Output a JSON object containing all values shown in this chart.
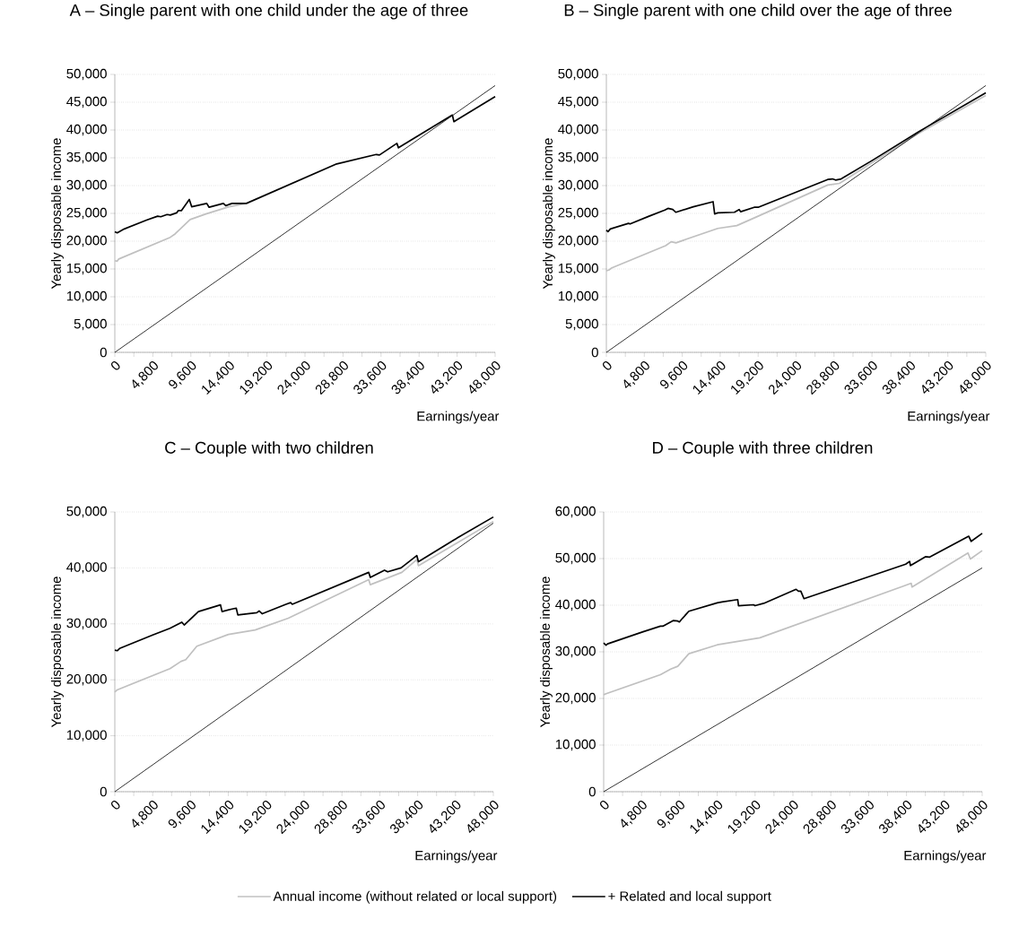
{
  "chart_data": [
    {
      "type": "line",
      "title": "A – Single parent with one child under the age of three",
      "xlabel": "Earnings/year",
      "ylabel": "Yearly disposable income",
      "grid": "y",
      "xlim": [
        0,
        48000
      ],
      "ylim": [
        0,
        50000
      ],
      "xticks": [
        0,
        {
          "value": 2400,
          "label": null
        },
        {
          "value": 4800,
          "label": "4,800"
        },
        {
          "value": 7200,
          "label": null
        },
        {
          "value": 9600,
          "label": "9,600"
        },
        {
          "value": 12000,
          "label": null
        },
        {
          "value": 14400,
          "label": "14,400"
        },
        {
          "value": 16800,
          "label": null
        },
        {
          "value": 19200,
          "label": "19,200"
        },
        {
          "value": 21600,
          "label": null
        },
        {
          "value": 24000,
          "label": "24,000"
        },
        {
          "value": 26400,
          "label": null
        },
        {
          "value": 28800,
          "label": "28,800"
        },
        {
          "value": 31200,
          "label": null
        },
        {
          "value": 33600,
          "label": "33,600"
        },
        {
          "value": 36000,
          "label": null
        },
        {
          "value": 38400,
          "label": "38,400"
        },
        {
          "value": 40800,
          "label": null
        },
        {
          "value": 43200,
          "label": "43,200"
        },
        {
          "value": 45600,
          "label": null
        },
        {
          "value": 48000,
          "label": "48,000"
        }
      ],
      "yticks": [
        0,
        {
          "value": 5000,
          "label": "5,000"
        },
        {
          "value": 10000,
          "label": "10,000"
        },
        {
          "value": 15000,
          "label": "15,000"
        },
        {
          "value": 20000,
          "label": "20,000"
        },
        {
          "value": 25000,
          "label": "25,000"
        },
        {
          "value": 30000,
          "label": "30,000"
        },
        {
          "value": 35000,
          "label": "35,000"
        },
        {
          "value": 40000,
          "label": "40,000"
        },
        {
          "value": 45000,
          "label": "45,000"
        },
        {
          "value": 50000,
          "label": "50,000"
        }
      ],
      "series": [
        {
          "color": "#c0c0c0",
          "x": [
            0,
            300,
            500,
            7000,
            7600,
            9500,
            11500,
            14400,
            16600
          ],
          "values": [
            16500,
            16400,
            16800,
            20700,
            21300,
            23900,
            24900,
            26200,
            26800
          ]
        },
        {
          "color": "#000000",
          "x": [
            0,
            300,
            1200,
            4000,
            5400,
            5800,
            6600,
            7000,
            7800,
            8000,
            8400,
            9400,
            9700,
            11600,
            11900,
            13700,
            14000,
            14800,
            16600,
            28000,
            33000,
            33400,
            35600,
            35800,
            42600,
            42800,
            48000
          ],
          "values": [
            21700,
            21500,
            22200,
            23800,
            24500,
            24400,
            24800,
            24700,
            25100,
            25500,
            25500,
            27500,
            26200,
            26800,
            26100,
            26800,
            26400,
            26800,
            26800,
            33900,
            35600,
            35500,
            37600,
            36800,
            42700,
            41500,
            46000
          ]
        },
        {
          "color": "#000000",
          "x": [
            0,
            48000
          ],
          "values": [
            0,
            48000
          ]
        }
      ]
    },
    {
      "type": "line",
      "title": "B – Single parent with one child over the age of three",
      "xlabel": "Earnings/year",
      "ylabel": "Yearly disposable income",
      "grid": "y",
      "xlim": [
        0,
        48000
      ],
      "ylim": [
        0,
        50000
      ],
      "xticks": [
        0,
        {
          "value": 2400,
          "label": null
        },
        {
          "value": 4800,
          "label": "4,800"
        },
        {
          "value": 7200,
          "label": null
        },
        {
          "value": 9600,
          "label": "9,600"
        },
        {
          "value": 12000,
          "label": null
        },
        {
          "value": 14400,
          "label": "14,400"
        },
        {
          "value": 16800,
          "label": null
        },
        {
          "value": 19200,
          "label": "19,200"
        },
        {
          "value": 21600,
          "label": null
        },
        {
          "value": 24000,
          "label": "24,000"
        },
        {
          "value": 26400,
          "label": null
        },
        {
          "value": 28800,
          "label": "28,800"
        },
        {
          "value": 31200,
          "label": null
        },
        {
          "value": 33600,
          "label": "33,600"
        },
        {
          "value": 36000,
          "label": null
        },
        {
          "value": 38400,
          "label": "38,400"
        },
        {
          "value": 40800,
          "label": null
        },
        {
          "value": 43200,
          "label": "43,200"
        },
        {
          "value": 45600,
          "label": null
        },
        {
          "value": 48000,
          "label": "48,000"
        }
      ],
      "yticks": [
        0,
        {
          "value": 5000,
          "label": "5,000"
        },
        {
          "value": 10000,
          "label": "10,000"
        },
        {
          "value": 15000,
          "label": "15,000"
        },
        {
          "value": 20000,
          "label": "20,000"
        },
        {
          "value": 25000,
          "label": "25,000"
        },
        {
          "value": 30000,
          "label": "30,000"
        },
        {
          "value": 35000,
          "label": "35,000"
        },
        {
          "value": 40000,
          "label": "40,000"
        },
        {
          "value": 45000,
          "label": "45,000"
        },
        {
          "value": 50000,
          "label": "50,000"
        }
      ],
      "series": [
        {
          "color": "#c0c0c0",
          "x": [
            0,
            300,
            700,
            7500,
            8200,
            8800,
            14100,
            16500,
            19200,
            28000,
            29500,
            33600,
            39500,
            48000
          ],
          "values": [
            14700,
            14800,
            15200,
            19200,
            19900,
            19700,
            22300,
            22800,
            24500,
            30100,
            30400,
            34100,
            39400,
            46200
          ]
        },
        {
          "color": "#000000",
          "x": [
            0,
            200,
            500,
            2800,
            3000,
            5400,
            7400,
            7800,
            8400,
            8800,
            11000,
            13500,
            13700,
            14100,
            16200,
            16800,
            17000,
            18700,
            19200,
            28000,
            28600,
            29000,
            29700,
            33600,
            39500,
            48000
          ],
          "values": [
            22000,
            21700,
            22200,
            23200,
            23100,
            24500,
            25600,
            25900,
            25700,
            25200,
            26200,
            27100,
            24900,
            25100,
            25200,
            25700,
            25300,
            26100,
            26100,
            31100,
            31200,
            31000,
            31200,
            34500,
            39700,
            46700
          ]
        },
        {
          "color": "#000000",
          "x": [
            0,
            48000
          ],
          "values": [
            0,
            48000
          ]
        }
      ]
    },
    {
      "type": "line",
      "title": "C – Couple with two children",
      "xlabel": "Earnings/year",
      "ylabel": "Yearly disposable income",
      "grid": "y",
      "xlim": [
        0,
        48000
      ],
      "ylim": [
        0,
        50000
      ],
      "xticks": [
        0,
        {
          "value": 2400,
          "label": null
        },
        {
          "value": 4800,
          "label": "4,800"
        },
        {
          "value": 7200,
          "label": null
        },
        {
          "value": 9600,
          "label": "9,600"
        },
        {
          "value": 12000,
          "label": null
        },
        {
          "value": 14400,
          "label": "14,400"
        },
        {
          "value": 16800,
          "label": null
        },
        {
          "value": 19200,
          "label": "19,200"
        },
        {
          "value": 21600,
          "label": null
        },
        {
          "value": 24000,
          "label": "24,000"
        },
        {
          "value": 26400,
          "label": null
        },
        {
          "value": 28800,
          "label": "28,800"
        },
        {
          "value": 31200,
          "label": null
        },
        {
          "value": 33600,
          "label": "33,600"
        },
        {
          "value": 36000,
          "label": null
        },
        {
          "value": 38400,
          "label": "38,400"
        },
        {
          "value": 40800,
          "label": null
        },
        {
          "value": 43200,
          "label": "43,200"
        },
        {
          "value": 45600,
          "label": null
        },
        {
          "value": 48000,
          "label": "48,000"
        }
      ],
      "yticks": [
        0,
        {
          "value": 10000,
          "label": "10,000"
        },
        {
          "value": 20000,
          "label": "20,000"
        },
        {
          "value": 30000,
          "label": "30,000"
        },
        {
          "value": 40000,
          "label": "40,000"
        },
        {
          "value": 50000,
          "label": "50,000"
        }
      ],
      "series": [
        {
          "color": "#c0c0c0",
          "x": [
            0,
            300,
            7000,
            8400,
            9000,
            10400,
            14400,
            17800,
            22000,
            32200,
            32400,
            36400,
            38300,
            38500,
            48000
          ],
          "values": [
            17800,
            18200,
            22000,
            23300,
            23600,
            26000,
            28100,
            28900,
            31000,
            37900,
            37000,
            39200,
            41500,
            40400,
            48300
          ]
        },
        {
          "color": "#000000",
          "x": [
            0,
            300,
            600,
            4800,
            7000,
            8500,
            8800,
            10600,
            13400,
            13600,
            15000,
            15400,
            15600,
            18000,
            18300,
            18700,
            21700,
            22300,
            22500,
            32200,
            32400,
            34200,
            34600,
            36300,
            38300,
            38500,
            43000,
            48000
          ],
          "values": [
            25300,
            25200,
            25600,
            28000,
            29200,
            30300,
            29800,
            32200,
            33400,
            32200,
            32700,
            32800,
            31600,
            32000,
            32300,
            31800,
            33500,
            33800,
            33500,
            39200,
            38300,
            39600,
            39300,
            40000,
            42200,
            41100,
            45000,
            49100
          ]
        },
        {
          "color": "#000000",
          "x": [
            0,
            48000
          ],
          "values": [
            0,
            48000
          ]
        }
      ]
    },
    {
      "type": "line",
      "title": "D – Couple with three children",
      "xlabel": "Earnings/year",
      "ylabel": "Yearly disposable income",
      "grid": "y",
      "legend": "bottom",
      "xlim": [
        0,
        48000
      ],
      "ylim": [
        0,
        60000
      ],
      "xticks": [
        0,
        {
          "value": 2400,
          "label": null
        },
        {
          "value": 4800,
          "label": "4,800"
        },
        {
          "value": 7200,
          "label": null
        },
        {
          "value": 9600,
          "label": "9,600"
        },
        {
          "value": 12000,
          "label": null
        },
        {
          "value": 14400,
          "label": "14,400"
        },
        {
          "value": 16800,
          "label": null
        },
        {
          "value": 19200,
          "label": "19,200"
        },
        {
          "value": 21600,
          "label": null
        },
        {
          "value": 24000,
          "label": "24,000"
        },
        {
          "value": 26400,
          "label": null
        },
        {
          "value": 28800,
          "label": "28,800"
        },
        {
          "value": 31200,
          "label": null
        },
        {
          "value": 33600,
          "label": "33,600"
        },
        {
          "value": 36000,
          "label": null
        },
        {
          "value": 38400,
          "label": "38,400"
        },
        {
          "value": 40800,
          "label": null
        },
        {
          "value": 43200,
          "label": "43,200"
        },
        {
          "value": 45600,
          "label": null
        },
        {
          "value": 48000,
          "label": "48,000"
        }
      ],
      "yticks": [
        0,
        {
          "value": 10000,
          "label": "10,000"
        },
        {
          "value": 20000,
          "label": "20,000"
        },
        {
          "value": 30000,
          "label": "30,000"
        },
        {
          "value": 40000,
          "label": "40,000"
        },
        {
          "value": 50000,
          "label": "50,000"
        },
        {
          "value": 60000,
          "label": "60,000"
        }
      ],
      "series": [
        {
          "name": "Annual income (without related or local support)",
          "color": "#c0c0c0",
          "x": [
            0,
            300,
            7200,
            8500,
            9400,
            10800,
            14400,
            19800,
            38000,
            39000,
            39100,
            46200,
            46500,
            48000
          ],
          "values": [
            20800,
            21000,
            25100,
            26300,
            26900,
            29600,
            31500,
            33000,
            44100,
            44700,
            43900,
            51200,
            49900,
            51700
          ]
        },
        {
          "name": "+ Related and local support",
          "color": "#000000",
          "x": [
            0,
            300,
            500,
            5000,
            7200,
            7500,
            8800,
            9400,
            9600,
            10000,
            10800,
            14400,
            15000,
            17000,
            17100,
            19000,
            19200,
            20300,
            24400,
            24700,
            25000,
            25400,
            38300,
            38800,
            38900,
            40800,
            41300,
            46300,
            46600,
            48000
          ],
          "values": [
            31900,
            31400,
            31700,
            34300,
            35500,
            35500,
            36700,
            36600,
            36400,
            37200,
            38700,
            40500,
            40700,
            41200,
            39900,
            40100,
            39900,
            40400,
            43400,
            43000,
            43000,
            41400,
            48800,
            49400,
            48500,
            50400,
            50300,
            54800,
            53700,
            55400
          ]
        },
        {
          "color": "#000000",
          "x": [
            0,
            48000
          ],
          "values": [
            0,
            48000
          ]
        }
      ]
    }
  ]
}
